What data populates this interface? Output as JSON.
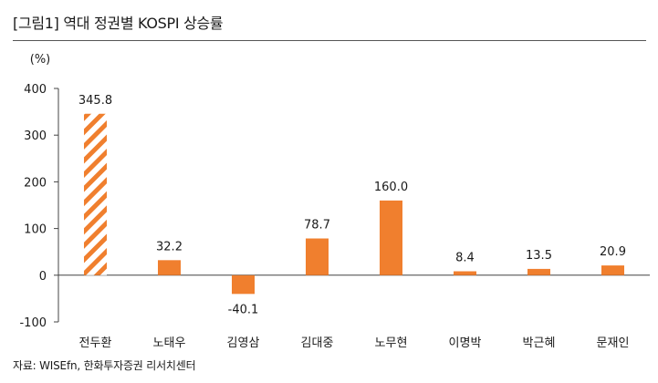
{
  "header": {
    "title": "[그림1]    역대 정권별 KOSPI 상승률"
  },
  "footer": {
    "source": "자료: WISEfn, 한화투자증권 리서치센터"
  },
  "chart_data": {
    "type": "bar",
    "title": "역대 정권별 KOSPI 상승률",
    "unit": "(%)",
    "categories": [
      "전두환",
      "노태우",
      "김영삼",
      "김대중",
      "노무현",
      "이명박",
      "박근혜",
      "문재인"
    ],
    "series": [
      {
        "values": [
          345.8,
          32.2,
          -40.1,
          78.7,
          160.0,
          8.4,
          13.5,
          20.9
        ]
      }
    ],
    "data_labels": [
      "345.8",
      "32.2",
      "-40.1",
      "78.7",
      "160.0",
      "8.4",
      "13.5",
      "20.9"
    ],
    "yticks": [
      400,
      300,
      200,
      100,
      0,
      -100
    ],
    "ylim": [
      -100,
      400
    ],
    "highlight_category_index": 0,
    "colors": {
      "bar": "#F07F2E",
      "hatch": "#F07F2E",
      "axis": "#444444"
    },
    "grid": false,
    "legend": "none"
  }
}
